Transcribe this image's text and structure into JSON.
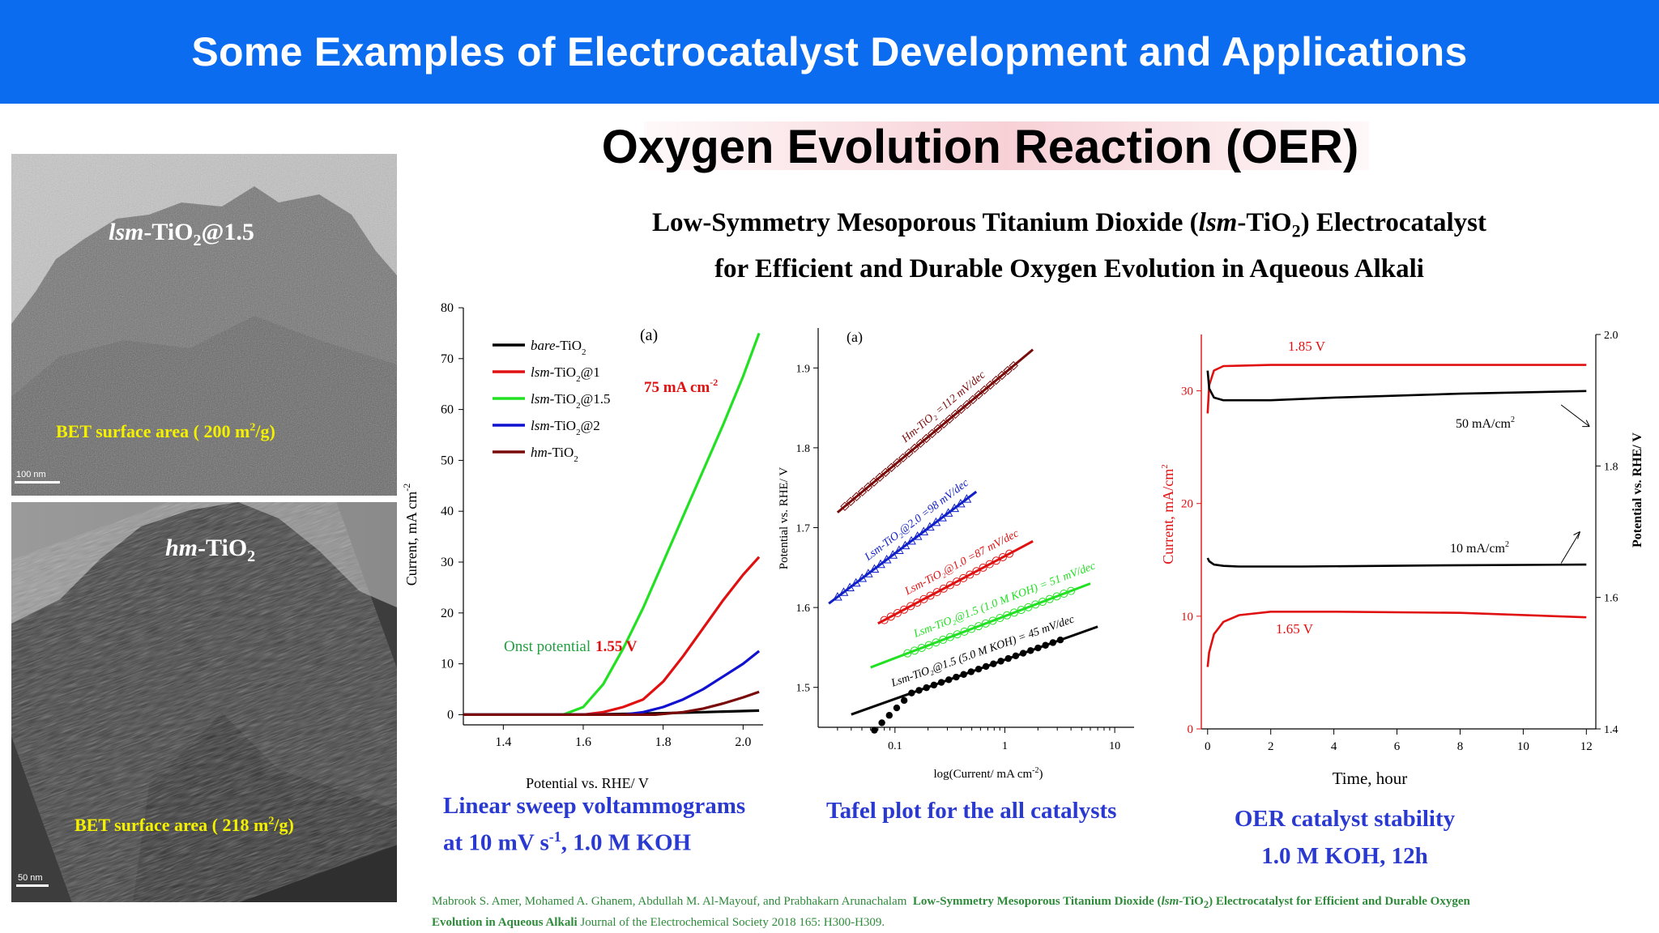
{
  "banner": {
    "title": "Some Examples of Electrocatalyst Development and Applications"
  },
  "main_title": "Oxygen Evolution Reaction (OER)",
  "subtitle": {
    "line1_a": "Low-Symmetry Mesoporous Titanium Dioxide (",
    "line1_italic": "lsm",
    "line1_b": "-TiO",
    "line1_sub": "2",
    "line1_c": ") Electrocatalyst",
    "line2": "for Efficient and Durable Oxygen Evolution in Aqueous Alkali"
  },
  "tem_images": [
    {
      "label_italic": "lsm",
      "label_rest": "-TiO",
      "label_sub": "2",
      "label_tail": "@1.5",
      "bet_a": "BET surface area ( 200 m",
      "bet_sup": "2",
      "bet_b": "/g)",
      "scale_text": "100 nm"
    },
    {
      "label_italic": "hm",
      "label_rest": "-TiO",
      "label_sub": "2",
      "label_tail": "",
      "bet_a": "BET surface area ( 218 m",
      "bet_sup": "2",
      "bet_b": "/g)",
      "scale_text": "50 nm"
    }
  ],
  "captions": {
    "lsv_line1": "Linear sweep voltammograms",
    "lsv_line2_a": "at 10 mV s",
    "lsv_line2_sup": "-1",
    "lsv_line2_b": ", 1.0 M KOH",
    "tafel": "Tafel plot for the all catalysts",
    "stability_line1": "OER catalyst stability",
    "stability_line2": "1.0 M KOH, 12h"
  },
  "citation": {
    "authors": "Mabrook S. Amer, Mohamed A. Ghanem, Abdullah M. Al-Mayouf, and Prabhakarn Arunachalam",
    "title_a": "Low-Symmetry Mesoporous Titanium Dioxide (",
    "title_italic": "lsm",
    "title_b": "-TiO",
    "title_sub": "2",
    "title_c": ") Electrocatalyst for Efficient and Durable Oxygen Evolution in Aqueous Alkali",
    "journal": "Journal of the Electrochemical Society 2018 165: H300-H309."
  },
  "chart_data": [
    {
      "type": "line",
      "panel_label": "(a)",
      "xlabel": "Potential vs. RHE/ V",
      "ylabel": "Current, mA cm",
      "ylabel_sup": "-2",
      "xlim": [
        1.3,
        2.05
      ],
      "ylim": [
        -2,
        80
      ],
      "x_ticks": [
        1.4,
        1.6,
        1.8,
        2.0
      ],
      "x_tick_labels": [
        "1.4",
        "1.6",
        "1.8",
        "2.0"
      ],
      "y_ticks": [
        0,
        10,
        20,
        30,
        40,
        50,
        60,
        70,
        80
      ],
      "y_tick_labels": [
        "0",
        "10",
        "20",
        "30",
        "40",
        "50",
        "60",
        "70",
        "80"
      ],
      "legend_position": "top-left",
      "annotations": {
        "max_current": "75 mA cm",
        "max_current_sup": "-2",
        "onset_a": "Onst potential",
        "onset_b": "1.55 V"
      },
      "series": [
        {
          "legend_italic": "bare",
          "legend_rest": "-TiO",
          "legend_sub": "2",
          "legend_tail": "",
          "color": "#000000",
          "points": [
            [
              1.3,
              0
            ],
            [
              1.6,
              0
            ],
            [
              1.8,
              0.3
            ],
            [
              1.9,
              0.5
            ],
            [
              2.04,
              0.8
            ]
          ]
        },
        {
          "legend_italic": "lsm",
          "legend_rest": "-TiO",
          "legend_sub": "2",
          "legend_tail": "@1",
          "color": "#e01010",
          "points": [
            [
              1.3,
              0
            ],
            [
              1.6,
              0
            ],
            [
              1.65,
              0.5
            ],
            [
              1.7,
              1.5
            ],
            [
              1.75,
              3
            ],
            [
              1.8,
              6.5
            ],
            [
              1.85,
              11.5
            ],
            [
              1.9,
              17
            ],
            [
              1.95,
              22.5
            ],
            [
              2.0,
              27.5
            ],
            [
              2.04,
              31
            ]
          ]
        },
        {
          "legend_italic": "lsm",
          "legend_rest": "-TiO",
          "legend_sub": "2",
          "legend_tail": "@1.5",
          "color": "#22e022",
          "points": [
            [
              1.3,
              0
            ],
            [
              1.55,
              0
            ],
            [
              1.6,
              1.5
            ],
            [
              1.65,
              6
            ],
            [
              1.7,
              13
            ],
            [
              1.75,
              21
            ],
            [
              1.8,
              30
            ],
            [
              1.85,
              39
            ],
            [
              1.9,
              48
            ],
            [
              1.95,
              57
            ],
            [
              2.0,
              66.5
            ],
            [
              2.04,
              75
            ]
          ]
        },
        {
          "legend_italic": "lsm",
          "legend_rest": "-TiO",
          "legend_sub": "2",
          "legend_tail": "@2",
          "color": "#1010d0",
          "points": [
            [
              1.3,
              0
            ],
            [
              1.7,
              0
            ],
            [
              1.75,
              0.5
            ],
            [
              1.8,
              1.5
            ],
            [
              1.85,
              3
            ],
            [
              1.9,
              5
            ],
            [
              1.95,
              7.5
            ],
            [
              2.0,
              10
            ],
            [
              2.04,
              12.5
            ]
          ]
        },
        {
          "legend_italic": "hm",
          "legend_rest": "-TiO",
          "legend_sub": "2",
          "legend_tail": "",
          "color": "#7a0a0a",
          "points": [
            [
              1.3,
              0
            ],
            [
              1.78,
              0
            ],
            [
              1.85,
              0.5
            ],
            [
              1.9,
              1.2
            ],
            [
              1.95,
              2.2
            ],
            [
              2.0,
              3.4
            ],
            [
              2.04,
              4.5
            ]
          ]
        }
      ]
    },
    {
      "type": "scatter",
      "panel_label": "(a)",
      "xlabel": "log(Current/ mA cm",
      "xlabel_sup": "-2",
      "xlabel_tail": ")",
      "ylabel": "Potential vs. RHE/ V",
      "x_scale": "log",
      "xlim": [
        0.02,
        15
      ],
      "ylim": [
        1.45,
        1.95
      ],
      "x_ticks": [
        0.1,
        1,
        10
      ],
      "x_tick_labels": [
        "0.1",
        "1",
        "10"
      ],
      "y_ticks": [
        1.5,
        1.6,
        1.7,
        1.8,
        1.9
      ],
      "y_tick_labels": [
        "1.5",
        "1.6",
        "1.7",
        "1.8",
        "1.9"
      ],
      "series": [
        {
          "label": "Hm-TiO₂ =112 mV/dec",
          "color": "#7a0a0a",
          "marker": "open-diamond",
          "fit": [
            [
              0.03,
              1.719
            ],
            [
              1.8,
              1.923
            ]
          ],
          "points_x": [
            0.035,
            1.2
          ],
          "n_points": 30
        },
        {
          "label": "Lsm-TiO₂@2.0 =98 mV/dec",
          "color": "#1020c8",
          "marker": "open-triangle",
          "fit": [
            [
              0.025,
              1.605
            ],
            [
              0.55,
              1.745
            ]
          ],
          "points_x": [
            0.03,
            0.45
          ],
          "n_points": 22
        },
        {
          "label": "Lsm-TiO₂@1.0 =87 mV/dec",
          "color": "#e01010",
          "marker": "open-circle",
          "fit": [
            [
              0.07,
              1.58
            ],
            [
              1.8,
              1.683
            ]
          ],
          "points_x": [
            0.08,
            1.1
          ],
          "n_points": 20
        },
        {
          "label": "Lsm-TiO₂@1.5 (1.0 M KOH) = 51 mV/dec",
          "color": "#22e022",
          "marker": "open-circle",
          "fit": [
            [
              0.06,
              1.525
            ],
            [
              6,
              1.63
            ]
          ],
          "points_x": [
            0.13,
            4.0
          ],
          "n_points": 24
        },
        {
          "label": "Lsm-TiO₂@1.5 (5.0 M KOH) = 45 mV/dec",
          "color": "#000000",
          "marker": "filled-circle",
          "fit": [
            [
              0.04,
              1.466
            ],
            [
              7,
              1.576
            ]
          ],
          "points_x": [
            0.065,
            3.2
          ],
          "n_points": 26
        }
      ]
    },
    {
      "type": "line",
      "xlabel": "Time, hour",
      "ylabel": "Current, mA/cm",
      "ylabel_sup": "2",
      "y2label": "Potential vs. RHE/ V",
      "xlim": [
        -0.2,
        12.3
      ],
      "ylim": [
        0,
        35
      ],
      "y2lim": [
        1.4,
        2.0
      ],
      "x_ticks": [
        0,
        2,
        4,
        6,
        8,
        10,
        12
      ],
      "x_tick_labels": [
        "0",
        "2",
        "4",
        "6",
        "8",
        "10",
        "12"
      ],
      "y_ticks": [
        0,
        10,
        20,
        30
      ],
      "y_tick_labels": [
        "0",
        "10",
        "20",
        "30"
      ],
      "y2_ticks": [
        1.4,
        1.6,
        1.8,
        2.0
      ],
      "y2_tick_labels": [
        "1.4",
        "1.6",
        "1.8",
        "2.0"
      ],
      "annotations": {
        "high_potential": "1.85 V",
        "low_potential": "1.65 V",
        "high_current_a": "50 mA/cm",
        "high_current_sup": "2",
        "low_current_a": "10 mA/cm",
        "low_current_sup": "2"
      },
      "series": [
        {
          "name_ref": "1.85 V",
          "axis": "left",
          "color": "#e01010",
          "points": [
            [
              0,
              28
            ],
            [
              0.05,
              30.5
            ],
            [
              0.2,
              31.8
            ],
            [
              0.5,
              32.2
            ],
            [
              2,
              32.3
            ],
            [
              6,
              32.3
            ],
            [
              12,
              32.3
            ]
          ]
        },
        {
          "name_ref": "1.65 V",
          "axis": "left",
          "color": "#e01010",
          "points": [
            [
              0,
              5.5
            ],
            [
              0.05,
              6.8
            ],
            [
              0.2,
              8.4
            ],
            [
              0.5,
              9.5
            ],
            [
              1,
              10.1
            ],
            [
              2,
              10.4
            ],
            [
              4,
              10.4
            ],
            [
              8,
              10.3
            ],
            [
              12,
              9.9
            ]
          ]
        },
        {
          "name_ref": "50 mA/cm2",
          "axis": "right",
          "color": "#000000",
          "points": [
            [
              0,
              1.945
            ],
            [
              0.05,
              1.918
            ],
            [
              0.2,
              1.904
            ],
            [
              0.5,
              1.9
            ],
            [
              1,
              1.9
            ],
            [
              2,
              1.9
            ],
            [
              4,
              1.904
            ],
            [
              8,
              1.91
            ],
            [
              12,
              1.914
            ]
          ]
        },
        {
          "name_ref": "10 mA/cm2",
          "axis": "right",
          "color": "#000000",
          "points": [
            [
              0,
              1.66
            ],
            [
              0.05,
              1.655
            ],
            [
              0.2,
              1.65
            ],
            [
              0.5,
              1.648
            ],
            [
              1,
              1.647
            ],
            [
              3,
              1.647
            ],
            [
              8,
              1.649
            ],
            [
              12,
              1.65
            ]
          ]
        }
      ]
    }
  ]
}
